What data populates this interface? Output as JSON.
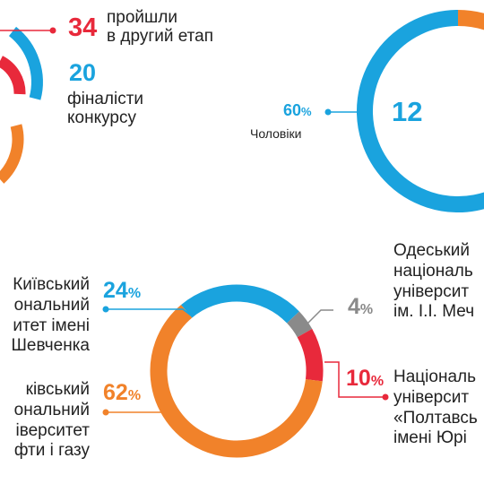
{
  "colors": {
    "red": "#e8293b",
    "blue": "#1aa3de",
    "orange": "#f1822a",
    "gray": "#8a8a8a"
  },
  "stages": {
    "second_stage": {
      "value": "34",
      "label_line1": "пройшли",
      "label_line2": "в другий етап"
    },
    "finalists": {
      "value": "20",
      "label_line1": "фіналісти",
      "label_line2": "конкурсу"
    }
  },
  "gender": {
    "center_value": "12",
    "men_value": "60",
    "men_unit": "%",
    "men_label": "Чоловіки"
  },
  "chart_data": [
    {
      "type": "pie",
      "subtype": "donut",
      "center_label": "12",
      "slices": [
        {
          "label": "Чоловіки",
          "value": 60,
          "color": "#1aa3de"
        },
        {
          "label": "",
          "value": 40,
          "color": "#f1822a"
        }
      ]
    },
    {
      "type": "pie",
      "subtype": "donut",
      "slices": [
        {
          "label": "Київський національний університет імені Шевченка",
          "value": 24,
          "color": "#1aa3de"
        },
        {
          "label": "Одеський національний університет ім. І.І. Мечникова",
          "value": 4,
          "color": "#8a8a8a"
        },
        {
          "label": "Національний університет «Полтавська політехніка імені Юрія Кондратюка»",
          "value": 10,
          "color": "#e8293b"
        },
        {
          "label": "Івано-Франківський національний технічний університет нафти і газу",
          "value": 62,
          "color": "#f1822a"
        }
      ]
    }
  ],
  "universities": {
    "kyiv": {
      "pct": "24",
      "unit": "%",
      "lines": [
        "Київський",
        "ональний",
        "итет імені",
        "Шевченка"
      ]
    },
    "ivano": {
      "pct": "62",
      "unit": "%",
      "lines": [
        "ківський",
        "ональний",
        "іверситет",
        "фти і газу"
      ]
    },
    "odesa": {
      "pct": "4",
      "unit": "%",
      "lines": [
        "Одеський",
        "національ",
        "університ",
        "ім. І.І. Меч"
      ]
    },
    "poltava": {
      "pct": "10",
      "unit": "%",
      "lines": [
        "Національ",
        "університ",
        "«Полтавсь",
        "імені Юрі"
      ]
    }
  }
}
